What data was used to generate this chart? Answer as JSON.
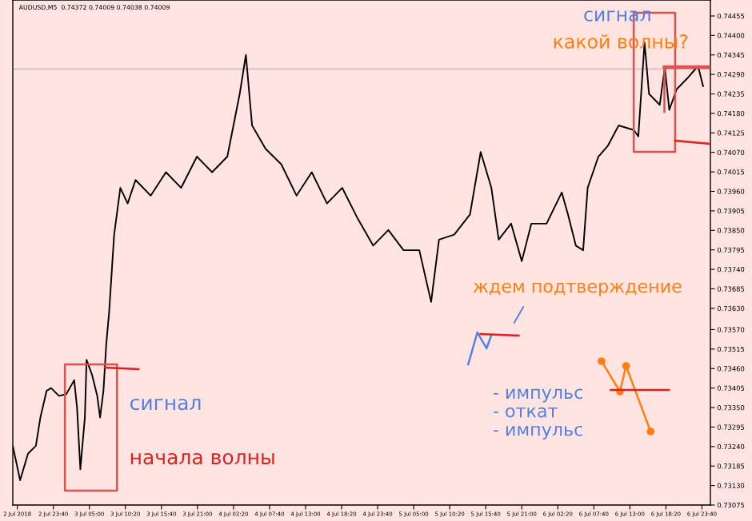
{
  "chart_data": {
    "type": "line",
    "title": "AUDUSD,M5  0.74372 0.74009 0.74038 0.74009",
    "x": [
      "2018-07-02T17:40",
      "2018-07-02T18:45",
      "2018-07-02T19:55",
      "2018-07-02T21:05",
      "2018-07-02T21:45",
      "2018-07-02T22:40",
      "2018-07-02T23:20",
      "2018-07-03T00:30",
      "2018-07-03T01:35",
      "2018-07-03T02:45",
      "2018-07-03T03:10",
      "2018-07-03T03:40",
      "2018-07-03T04:20",
      "2018-07-03T04:35",
      "2018-07-03T05:25",
      "2018-07-03T06:10",
      "2018-07-03T06:35",
      "2018-07-03T07:05",
      "2018-07-03T07:30",
      "2018-07-03T07:55",
      "2018-07-03T08:40",
      "2018-07-03T09:35",
      "2018-07-03T10:40",
      "2018-07-03T11:50",
      "2018-07-03T14:05",
      "2018-07-03T16:20",
      "2018-07-03T18:35",
      "2018-07-03T20:55",
      "2018-07-03T23:10",
      "2018-07-04T01:25",
      "2018-07-04T03:15",
      "2018-07-04T04:10",
      "2018-07-04T05:05",
      "2018-07-04T07:05",
      "2018-07-04T09:25",
      "2018-07-04T11:40",
      "2018-07-04T13:55",
      "2018-07-04T16:10",
      "2018-07-04T18:25",
      "2018-07-04T20:45",
      "2018-07-04T23:00",
      "2018-07-05T01:15",
      "2018-07-05T03:30",
      "2018-07-05T05:50",
      "2018-07-05T07:35",
      "2018-07-05T08:45",
      "2018-07-05T11:00",
      "2018-07-05T13:20",
      "2018-07-05T14:55",
      "2018-07-05T16:30",
      "2018-07-05T17:35",
      "2018-07-05T19:25",
      "2018-07-05T21:00",
      "2018-07-05T22:25",
      "2018-07-06T00:40",
      "2018-07-06T02:55",
      "2018-07-06T03:50",
      "2018-07-06T05:00",
      "2018-07-06T06:05",
      "2018-07-06T06:45",
      "2018-07-06T08:20",
      "2018-07-06T09:45",
      "2018-07-06T11:20",
      "2018-07-06T13:35",
      "2018-07-06T14:15",
      "2018-07-06T15:10",
      "2018-07-06T15:50",
      "2018-07-06T17:25",
      "2018-07-06T18:10",
      "2018-07-06T18:50",
      "2018-07-06T19:55",
      "2018-07-06T21:30",
      "2018-07-06T23:05",
      "2018-07-06T23:50"
    ],
    "series": [
      {
        "color": "#000000",
        "values": [
          0.73242,
          0.73145,
          0.7322,
          0.73242,
          0.73322,
          0.73397,
          0.73405,
          0.73383,
          0.73388,
          0.73427,
          0.73352,
          0.73176,
          0.73322,
          0.73485,
          0.73441,
          0.73383,
          0.73322,
          0.73397,
          0.73529,
          0.73617,
          0.73838,
          0.7397,
          0.73926,
          0.73992,
          0.73948,
          0.74014,
          0.7397,
          0.74058,
          0.74014,
          0.74058,
          0.74235,
          0.74345,
          0.74146,
          0.7408,
          0.74036,
          0.73948,
          0.74014,
          0.73926,
          0.7397,
          0.73882,
          0.73807,
          0.73851,
          0.73794,
          0.73794,
          0.73648,
          0.73824,
          0.73838,
          0.73895,
          0.74071,
          0.7397,
          0.73824,
          0.73869,
          0.73763,
          0.73869,
          0.73869,
          0.73957,
          0.73895,
          0.73807,
          0.73794,
          0.7397,
          0.74058,
          0.74089,
          0.74146,
          0.74133,
          0.74115,
          0.7438,
          0.74235,
          0.74204,
          0.7431,
          0.7419,
          0.74248,
          0.74279,
          0.74314,
          0.74257
        ]
      }
    ],
    "xlim": [
      "2018-07-02T17:40",
      "2018-07-07T00:55"
    ],
    "xticks": [
      {
        "value": "2018-07-02T18:20",
        "label": "2 Jul 2018"
      },
      {
        "value": "2018-07-02T23:40",
        "label": "2 Jul 23:40"
      },
      {
        "value": "2018-07-03T05:00",
        "label": "3 Jul 05:00"
      },
      {
        "value": "2018-07-03T10:20",
        "label": "3 Jul 10:20"
      },
      {
        "value": "2018-07-03T15:40",
        "label": "3 Jul 15:40"
      },
      {
        "value": "2018-07-03T21:00",
        "label": "3 Jul 21:00"
      },
      {
        "value": "2018-07-04T02:20",
        "label": "4 Jul 02:20"
      },
      {
        "value": "2018-07-04T07:40",
        "label": "4 Jul 07:40"
      },
      {
        "value": "2018-07-04T13:00",
        "label": "4 Jul 13:00"
      },
      {
        "value": "2018-07-04T18:20",
        "label": "4 Jul 18:20"
      },
      {
        "value": "2018-07-04T23:40",
        "label": "4 Jul 23:40"
      },
      {
        "value": "2018-07-05T05:00",
        "label": "5 Jul 05:00"
      },
      {
        "value": "2018-07-05T10:20",
        "label": "5 Jul 10:20"
      },
      {
        "value": "2018-07-05T15:40",
        "label": "5 Jul 15:40"
      },
      {
        "value": "2018-07-05T21:00",
        "label": "5 Jul 21:00"
      },
      {
        "value": "2018-07-06T02:20",
        "label": "6 Jul 02:20"
      },
      {
        "value": "2018-07-06T07:40",
        "label": "6 Jul 07:40"
      },
      {
        "value": "2018-07-06T13:00",
        "label": "6 Jul 13:00"
      },
      {
        "value": "2018-07-06T18:20",
        "label": "6 Jul 18:20"
      },
      {
        "value": "2018-07-06T23:40",
        "label": "6 Jul 23:40"
      }
    ],
    "ylim": [
      0.73075,
      0.745
    ],
    "yticks": [
      {
        "value": 0.73075,
        "label": "0.73075"
      },
      {
        "value": 0.7313,
        "label": "0.73130"
      },
      {
        "value": 0.73185,
        "label": "0.73185"
      },
      {
        "value": 0.7324,
        "label": "0.73240"
      },
      {
        "value": 0.73295,
        "label": "0.73295"
      },
      {
        "value": 0.7335,
        "label": "0.73350"
      },
      {
        "value": 0.73405,
        "label": "0.73405"
      },
      {
        "value": 0.7346,
        "label": "0.73460"
      },
      {
        "value": 0.73515,
        "label": "0.73515"
      },
      {
        "value": 0.7357,
        "label": "0.73570"
      },
      {
        "value": 0.7363,
        "label": "0.73630"
      },
      {
        "value": 0.73685,
        "label": "0.73685"
      },
      {
        "value": 0.7374,
        "label": "0.73740"
      },
      {
        "value": 0.73795,
        "label": "0.73795"
      },
      {
        "value": 0.7385,
        "label": "0.73850"
      },
      {
        "value": 0.73905,
        "label": "0.73905"
      },
      {
        "value": 0.7396,
        "label": "0.73960"
      },
      {
        "value": 0.74015,
        "label": "0.74015"
      },
      {
        "value": 0.7407,
        "label": "0.74070"
      },
      {
        "value": 0.74125,
        "label": "0.74125"
      },
      {
        "value": 0.7418,
        "label": "0.74180"
      },
      {
        "value": 0.74235,
        "label": "0.74235"
      },
      {
        "value": 0.7429,
        "label": "0.74290"
      },
      {
        "value": 0.74345,
        "label": "0.74345"
      },
      {
        "value": 0.744,
        "label": "0.74400"
      },
      {
        "value": 0.74455,
        "label": "0.74455"
      }
    ],
    "ref_lines": [
      {
        "axis": "y",
        "value": 0.74305,
        "color": "#d8c8c8"
      }
    ],
    "annotations": [
      "сигнал",
      "начала волны",
      "сигнал",
      "какой волны?",
      "ждем подтверждение",
      "- импульс\n- откат\n- импульс"
    ]
  }
}
